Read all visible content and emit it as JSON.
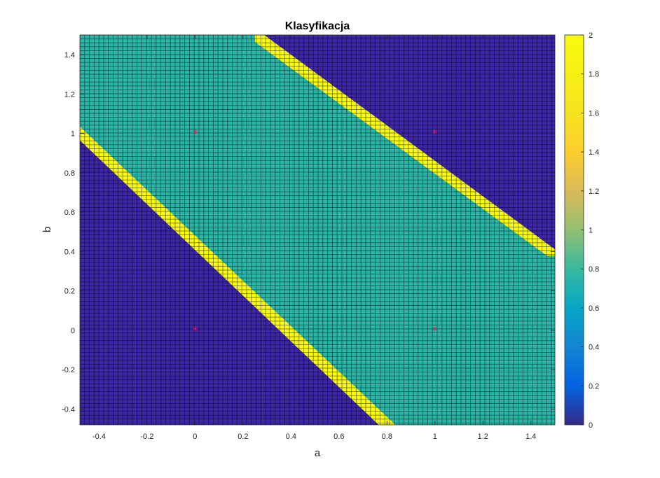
{
  "chart_data": {
    "type": "heatmap",
    "title": "Klasyfikacja",
    "xlabel": "a",
    "ylabel": "b",
    "xlim": [
      -0.48,
      1.5
    ],
    "ylim": [
      -0.48,
      1.5
    ],
    "grid_step": 0.02,
    "x_ticks": [
      -0.4,
      -0.2,
      0,
      0.2,
      0.4,
      0.6,
      0.8,
      1,
      1.2,
      1.4
    ],
    "x_tick_labels": [
      "-0.4",
      "-0.2",
      "0",
      "0.2",
      "0.4",
      "0.6",
      "0.8",
      "1",
      "1.2",
      "1.4"
    ],
    "y_ticks": [
      -0.4,
      -0.2,
      0,
      0.2,
      0.4,
      0.6,
      0.8,
      1,
      1.2,
      1.4
    ],
    "y_tick_labels": [
      "-0.4",
      "-0.2",
      "0",
      "0.2",
      "0.4",
      "0.6",
      "0.8",
      "1",
      "1.2",
      "1.4"
    ],
    "classes": [
      {
        "value": 0,
        "color": "#3e26a8",
        "region": "a + b below the lower band edge, and above the upper band edge"
      },
      {
        "value": 1,
        "color": "#2ab7a9",
        "region": "between the two yellow bands"
      },
      {
        "value": 2,
        "color": "#f9fb15",
        "region": "two diagonal bands"
      }
    ],
    "boundaries": [
      {
        "class": 2,
        "from_x": -0.48,
        "from_y": 1.0,
        "to_x": 0.8,
        "to_y": -0.48,
        "width": 0.07
      },
      {
        "class": 2,
        "from_x": 0.25,
        "from_y": 1.5,
        "to_x": 1.5,
        "to_y": 0.38,
        "width": 0.07
      }
    ],
    "markers": [
      {
        "x": 0,
        "y": 0,
        "symbol": "*",
        "color": "#e0205f"
      },
      {
        "x": 0,
        "y": 1,
        "symbol": "*",
        "color": "#e0205f"
      },
      {
        "x": 1,
        "y": 0,
        "symbol": "*",
        "color": "#e0205f"
      },
      {
        "x": 1,
        "y": 1,
        "symbol": "*",
        "color": "#e0205f"
      }
    ],
    "colorbar": {
      "range": [
        0,
        2
      ],
      "ticks": [
        0,
        0.2,
        0.4,
        0.6,
        0.8,
        1,
        1.2,
        1.4,
        1.6,
        1.8,
        2
      ],
      "tick_labels": [
        "0",
        "0.2",
        "0.4",
        "0.6",
        "0.8",
        "1",
        "1.2",
        "1.4",
        "1.6",
        "1.8",
        "2"
      ],
      "colormap": "parula",
      "placement": "right"
    },
    "grid": false
  }
}
